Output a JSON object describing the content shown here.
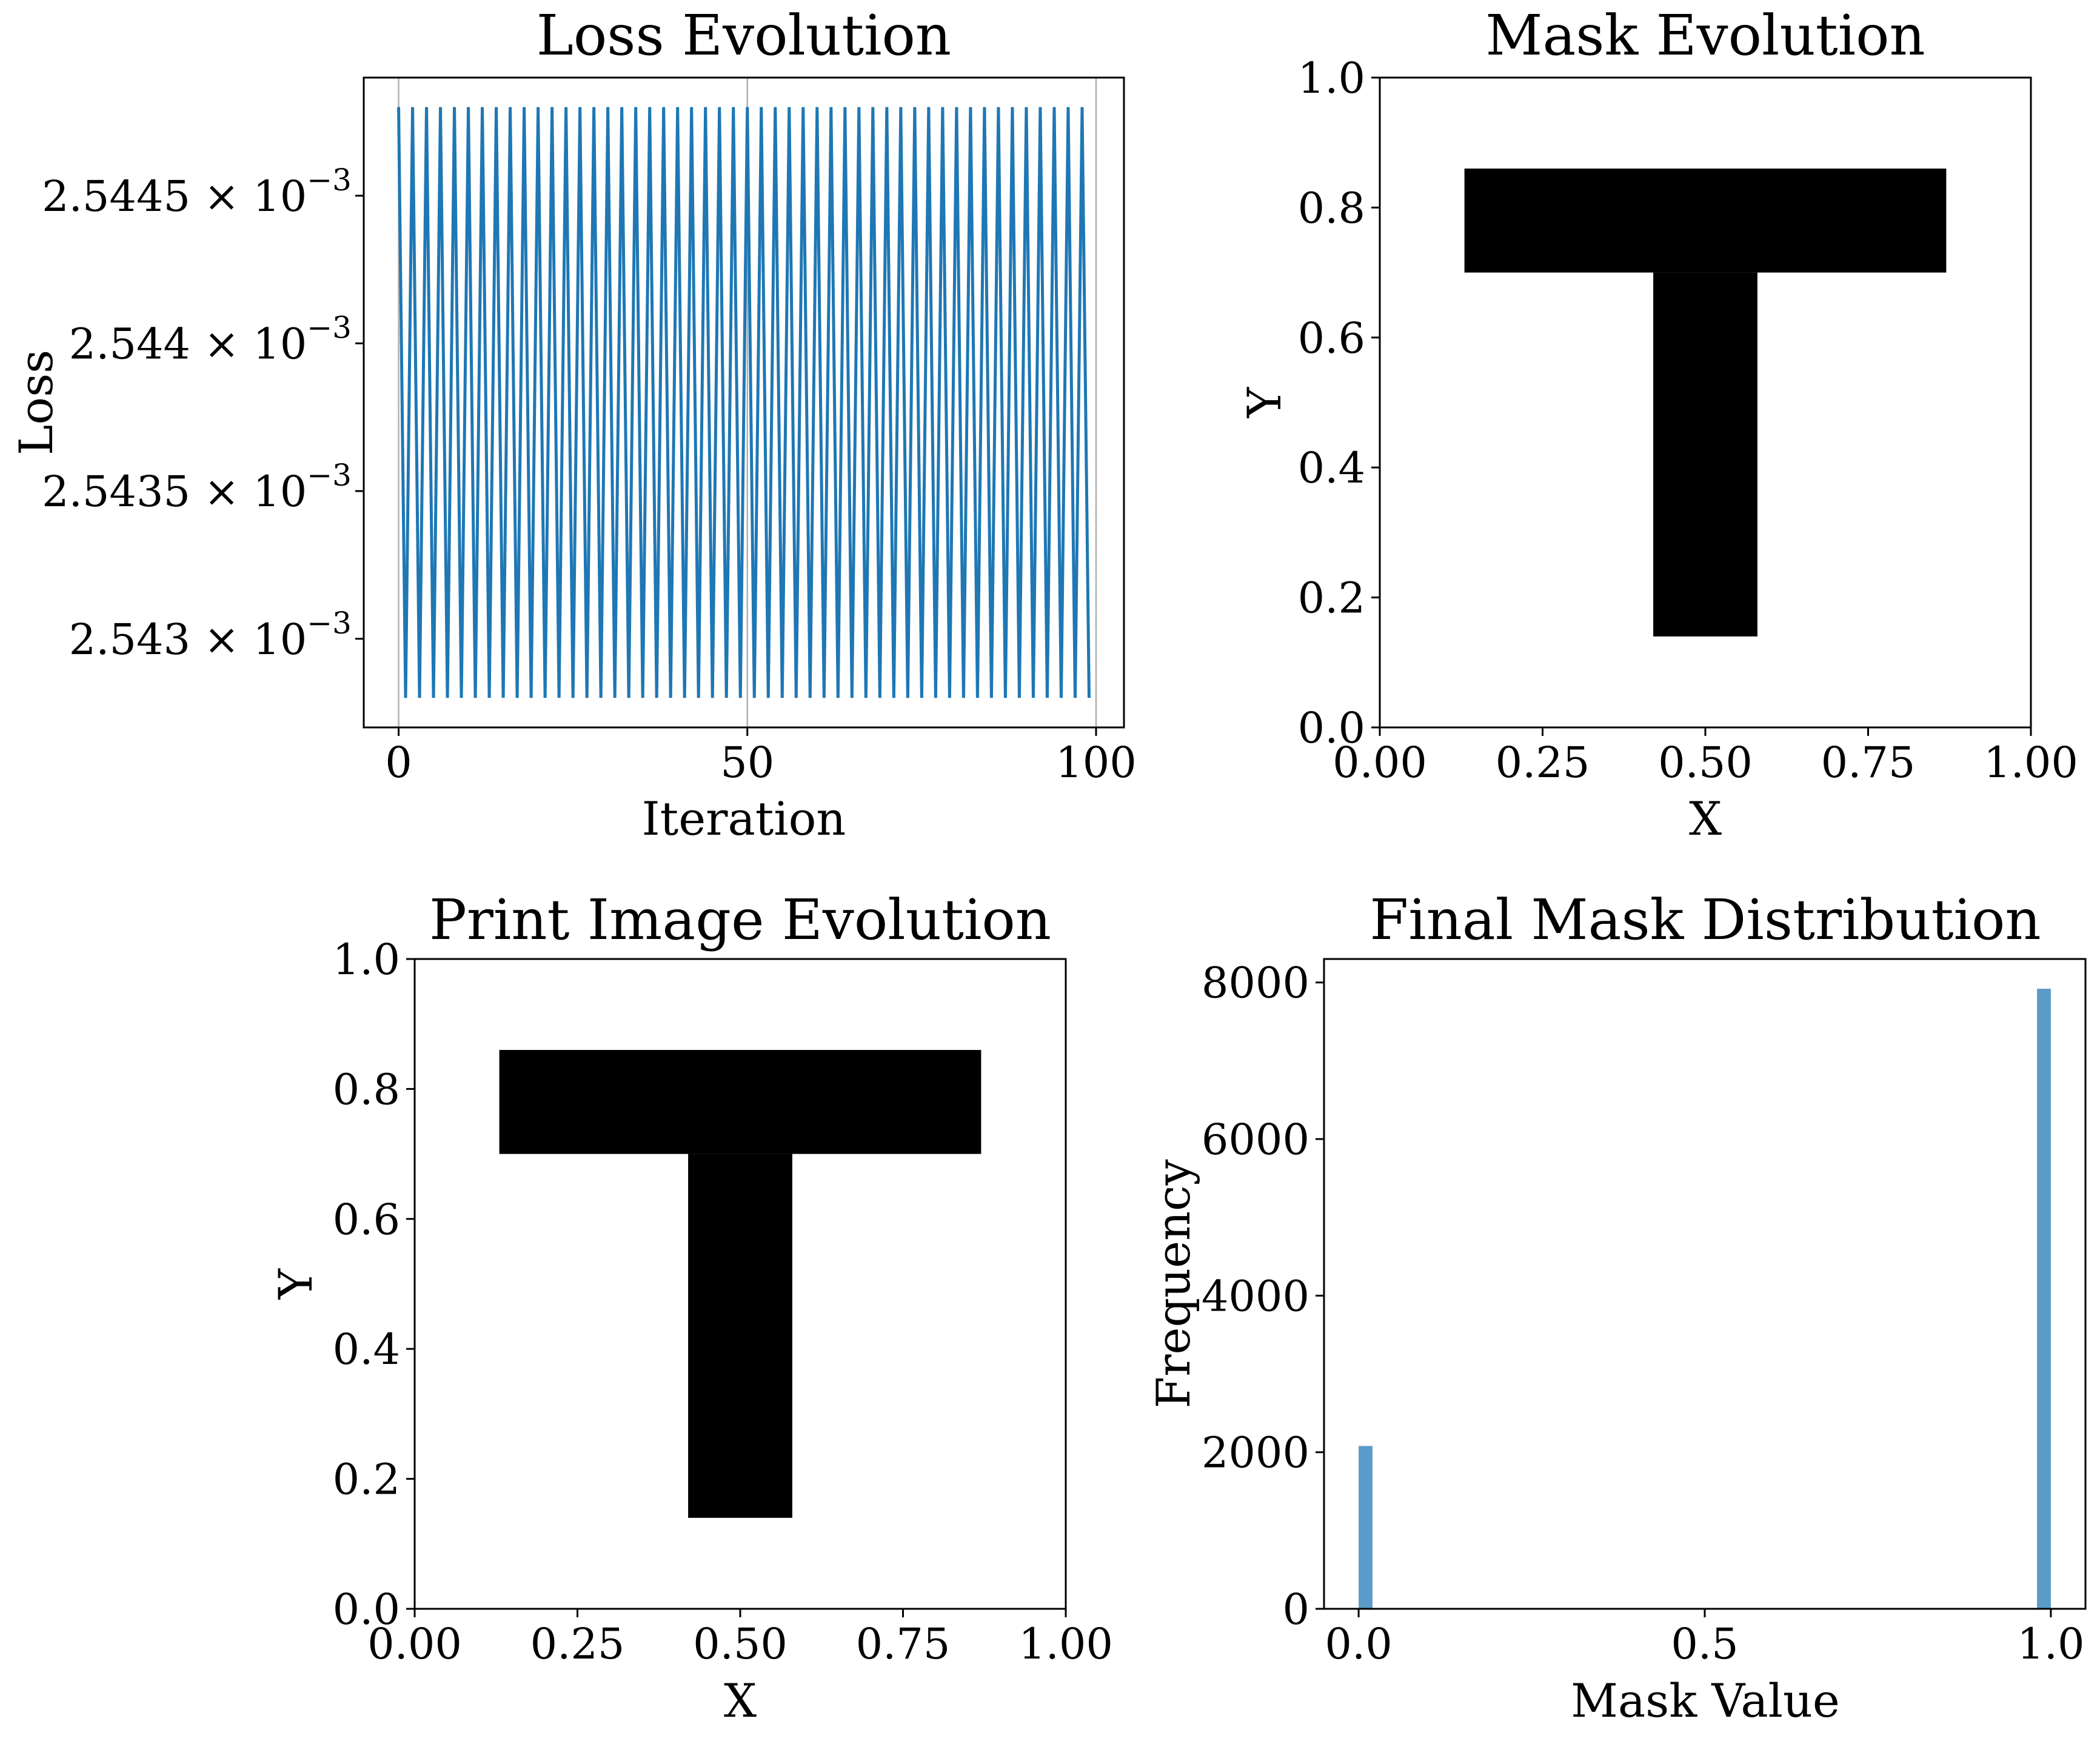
{
  "colors": {
    "loss_line": "#1f77b4",
    "hist_bar": "#5b9bc9",
    "shape_fill": "#000000",
    "grid": "#b0b0b0"
  },
  "chart_data": [
    {
      "type": "line",
      "title": "Loss Evolution",
      "xlabel": "Iteration",
      "ylabel": "Loss",
      "xlim": [
        -5,
        104
      ],
      "ylim": [
        0.0025427,
        0.0025449
      ],
      "y_scale": "log",
      "grid": true,
      "x_ticks": [
        0,
        50,
        100
      ],
      "x_tick_labels": [
        "0",
        "50",
        "100"
      ],
      "y_ticks": [
        0.0025445,
        0.002544,
        0.0025435,
        0.002543
      ],
      "y_tick_labels": [
        {
          "mantissa": "2.5445 × 10",
          "exp": "−3"
        },
        {
          "mantissa": "2.544 × 10",
          "exp": "−3"
        },
        {
          "mantissa": "2.5435 × 10",
          "exp": "−3"
        },
        {
          "mantissa": "2.543 × 10",
          "exp": "−3"
        }
      ],
      "series": [
        {
          "x_start": 0,
          "x_end": 99,
          "pattern": "alternating",
          "high": 0.0025448,
          "low": 0.0025428
        }
      ]
    },
    {
      "type": "heatmap",
      "title": "Mask Evolution",
      "xlabel": "X",
      "ylabel": "Y",
      "xlim": [
        0,
        1
      ],
      "ylim": [
        0,
        1
      ],
      "x_ticks": [
        0,
        0.25,
        0.5,
        0.75,
        1
      ],
      "x_tick_labels": [
        "0.00",
        "0.25",
        "0.50",
        "0.75",
        "1.00"
      ],
      "y_ticks": [
        0,
        0.2,
        0.4,
        0.6,
        0.8,
        1
      ],
      "y_tick_labels": [
        "0.0",
        "0.2",
        "0.4",
        "0.6",
        "0.8",
        "1.0"
      ],
      "regions": [
        {
          "name": "t-crossbar",
          "x": [
            0.13,
            0.87
          ],
          "y": [
            0.7,
            0.86
          ],
          "value": 0
        },
        {
          "name": "t-stem",
          "x": [
            0.42,
            0.58
          ],
          "y": [
            0.14,
            0.7
          ],
          "value": 0
        }
      ]
    },
    {
      "type": "heatmap",
      "title": "Print Image Evolution",
      "xlabel": "X",
      "ylabel": "Y",
      "xlim": [
        0,
        1
      ],
      "ylim": [
        0,
        1
      ],
      "x_ticks": [
        0,
        0.25,
        0.5,
        0.75,
        1
      ],
      "x_tick_labels": [
        "0.00",
        "0.25",
        "0.50",
        "0.75",
        "1.00"
      ],
      "y_ticks": [
        0,
        0.2,
        0.4,
        0.6,
        0.8,
        1
      ],
      "y_tick_labels": [
        "0.0",
        "0.2",
        "0.4",
        "0.6",
        "0.8",
        "1.0"
      ],
      "regions": [
        {
          "name": "t-crossbar",
          "x": [
            0.13,
            0.87
          ],
          "y": [
            0.7,
            0.86
          ],
          "value": 0
        },
        {
          "name": "t-stem",
          "x": [
            0.42,
            0.58
          ],
          "y": [
            0.14,
            0.7
          ],
          "value": 0
        }
      ]
    },
    {
      "type": "bar",
      "title": "Final Mask Distribution",
      "xlabel": "Mask Value",
      "ylabel": "Frequency",
      "xlim": [
        -0.05,
        1.05
      ],
      "ylim": [
        0,
        8300
      ],
      "x_ticks": [
        0,
        0.5,
        1
      ],
      "x_tick_labels": [
        "0.0",
        "0.5",
        "1.0"
      ],
      "y_ticks": [
        0,
        2000,
        4000,
        6000,
        8000
      ],
      "y_tick_labels": [
        "0",
        "2000",
        "4000",
        "6000",
        "8000"
      ],
      "bins": [
        {
          "x0": 0.0,
          "x1": 0.02,
          "value": 2080
        },
        {
          "x0": 0.98,
          "x1": 1.0,
          "value": 7920
        }
      ]
    }
  ]
}
